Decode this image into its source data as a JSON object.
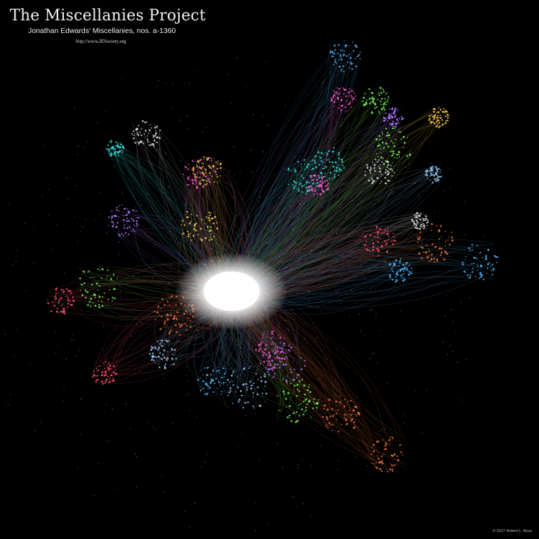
{
  "header": {
    "title": "The Miscellanies Project",
    "subtitle": "Jonathan Edwards' Miscellanies, nos. a-1360",
    "url": "http://www.JESociety.org"
  },
  "footer": {
    "copyright": "© 2017 Robert L. Boss"
  },
  "visual": {
    "background": "#000000",
    "hub_color": "#ffffff",
    "cluster_colors": [
      "#ff5fd2",
      "#4fb6ff",
      "#ff7a3c",
      "#7dff5a",
      "#35e0e0",
      "#b07cff",
      "#ffd24a",
      "#ff4f6e",
      "#9ad0ff",
      "#e6e6e6"
    ]
  }
}
